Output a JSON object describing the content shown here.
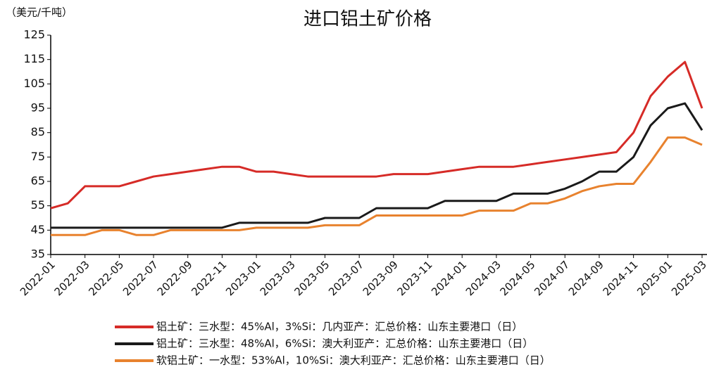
{
  "chart_data": {
    "type": "line",
    "title": "进口铝土矿价格",
    "ylabel": "（美元/千吨）",
    "x": [
      "2022-01",
      "2022-02",
      "2022-03",
      "2022-04",
      "2022-05",
      "2022-06",
      "2022-07",
      "2022-08",
      "2022-09",
      "2022-10",
      "2022-11",
      "2022-12",
      "2023-01",
      "2023-02",
      "2023-03",
      "2023-04",
      "2023-05",
      "2023-06",
      "2023-07",
      "2023-08",
      "2023-09",
      "2023-10",
      "2023-11",
      "2023-12",
      "2024-01",
      "2024-02",
      "2024-03",
      "2024-04",
      "2024-05",
      "2024-06",
      "2024-07",
      "2024-08",
      "2024-09",
      "2024-10",
      "2024-11",
      "2024-12",
      "2025-01",
      "2025-02",
      "2025-03"
    ],
    "series": [
      {
        "name": "铝土矿：三水型：45%Al，3%Si：几内亚产：汇总价格：山东主要港口（日）",
        "color": "#d62b27",
        "values": [
          54,
          56,
          63,
          63,
          63,
          65,
          67,
          68,
          69,
          70,
          71,
          71,
          69,
          69,
          68,
          67,
          67,
          67,
          67,
          67,
          68,
          68,
          68,
          69,
          70,
          71,
          71,
          71,
          72,
          73,
          74,
          75,
          76,
          77,
          85,
          100,
          108,
          114,
          95
        ]
      },
      {
        "name": "铝土矿：三水型：48%Al，6%Si：澳大利亚产：汇总价格：山东主要港口（日）",
        "color": "#1a1a1a",
        "values": [
          46,
          46,
          46,
          46,
          46,
          46,
          46,
          46,
          46,
          46,
          46,
          48,
          48,
          48,
          48,
          48,
          50,
          50,
          50,
          54,
          54,
          54,
          54,
          57,
          57,
          57,
          57,
          60,
          60,
          60,
          62,
          65,
          69,
          69,
          75,
          88,
          95,
          97,
          86
        ]
      },
      {
        "name": "软铝土矿：一水型：53%Al，10%Si：澳大利亚产：汇总价格：山东主要港口（日）",
        "color": "#e8822e",
        "values": [
          43,
          43,
          43,
          45,
          45,
          43,
          43,
          45,
          45,
          45,
          45,
          45,
          46,
          46,
          46,
          46,
          47,
          47,
          47,
          51,
          51,
          51,
          51,
          51,
          51,
          53,
          53,
          53,
          56,
          56,
          58,
          61,
          63,
          64,
          64,
          73,
          83,
          83,
          80
        ]
      }
    ],
    "ylim": [
      35,
      125
    ],
    "yticks": [
      35,
      45,
      55,
      65,
      75,
      85,
      95,
      105,
      115,
      125
    ],
    "xticks": [
      "2022-01",
      "2022-03",
      "2022-05",
      "2022-07",
      "2022-09",
      "2022-11",
      "2023-01",
      "2023-03",
      "2023-05",
      "2023-07",
      "2023-09",
      "2023-11",
      "2024-01",
      "2024-03",
      "2024-05",
      "2024-07",
      "2024-09",
      "2024-11",
      "2025-01",
      "2025-03"
    ]
  }
}
